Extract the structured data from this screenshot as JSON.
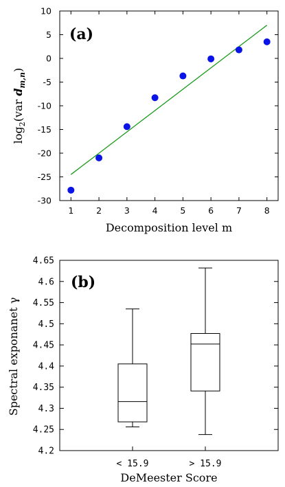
{
  "chart_data": [
    {
      "type": "scatter",
      "panel_label": "(a)",
      "xlabel": "Decomposition level m",
      "ylabel": "log2(var d_m,n)",
      "ylabel_parts": {
        "prefix": "log",
        "sub": "2",
        "open": "(var ",
        "var": "d",
        "var_sub": "m,n",
        "close": ")"
      },
      "xlim": [
        0.6,
        8.4
      ],
      "ylim": [
        -30,
        10
      ],
      "xticks": [
        "1",
        "2",
        "3",
        "4",
        "5",
        "6",
        "7",
        "8"
      ],
      "yticks": [
        "-30",
        "-25",
        "-20",
        "-15",
        "-10",
        "-5",
        "0",
        "5",
        "10"
      ],
      "points": [
        {
          "x": 1,
          "y": -27.8
        },
        {
          "x": 2,
          "y": -21.0
        },
        {
          "x": 3,
          "y": -14.4
        },
        {
          "x": 4,
          "y": -8.3
        },
        {
          "x": 5,
          "y": -3.7
        },
        {
          "x": 6,
          "y": -0.1
        },
        {
          "x": 7,
          "y": 1.8
        },
        {
          "x": 8,
          "y": 3.5
        }
      ],
      "fit_line": {
        "x": [
          1,
          8
        ],
        "y": [
          -24.5,
          7.0
        ]
      },
      "colors": {
        "points": "#0a14e6",
        "fit_line": "#1a9a1a"
      }
    },
    {
      "type": "boxplot",
      "panel_label": "(b)",
      "xlabel": "DeMeester Score",
      "ylabel": "Spectral exponanet γ",
      "ylim": [
        4.2,
        4.65
      ],
      "yticks": [
        "4.2",
        "4.25",
        "4.3",
        "4.35",
        "4.4",
        "4.45",
        "4.5",
        "4.55",
        "4.6",
        "4.65"
      ],
      "categories": [
        "< 15.9",
        "> 15.9"
      ],
      "boxes": [
        {
          "category": "< 15.9",
          "min": 4.256,
          "q1": 4.268,
          "median": 4.316,
          "q3": 4.405,
          "max": 4.535
        },
        {
          "category": "> 15.9",
          "min": 4.238,
          "q1": 4.341,
          "median": 4.452,
          "q3": 4.477,
          "max": 4.632
        }
      ]
    }
  ]
}
